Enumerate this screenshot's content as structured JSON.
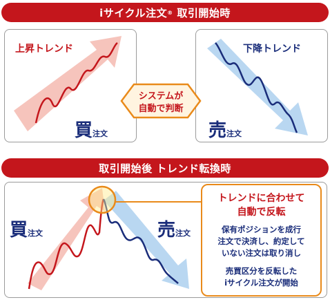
{
  "top_banner": {
    "text": "iサイクル注文",
    "reg": "®",
    "suffix": "取引開始時"
  },
  "left_panel": {
    "title": "上昇トレンド",
    "order_big": "買",
    "order_small": "注文"
  },
  "right_panel": {
    "title": "下降トレンド",
    "order_big": "売",
    "order_small": "注文"
  },
  "center_badge": {
    "line1": "システムが",
    "line2": "自動で判断"
  },
  "bottom_banner": {
    "text": "取引開始後 トレンド転換時"
  },
  "bottom_panel": {
    "buy_big": "買",
    "buy_small": "注文",
    "sell_big": "売",
    "sell_small": "注文"
  },
  "callout": {
    "heading1": "トレンドに合わせて",
    "heading2": "自動で反転",
    "body1": "保有ポジションを成行",
    "body2": "注文で決済し、約定して",
    "body3": "いない注文は取り消し",
    "body4": "売買区分を反転した",
    "body5": "iサイクル注文が開始"
  },
  "colors": {
    "red": "#c4161c",
    "navy": "#1a2d7a",
    "orange": "#e98a1a",
    "pink_arrow": "#f6c4bc",
    "blue_arrow": "#b9d7f1"
  }
}
